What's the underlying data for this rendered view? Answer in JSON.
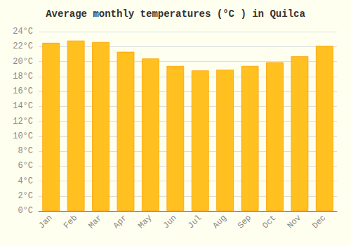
{
  "chart_data": {
    "type": "bar",
    "title": "Average monthly temperatures (°C ) in Quilca",
    "categories": [
      "Jan",
      "Feb",
      "Mar",
      "Apr",
      "May",
      "Jun",
      "Jul",
      "Aug",
      "Sep",
      "Oct",
      "Nov",
      "Dec"
    ],
    "values": [
      22.5,
      22.8,
      22.6,
      21.3,
      20.4,
      19.4,
      18.8,
      18.9,
      19.4,
      19.9,
      20.7,
      22.1
    ],
    "color": "#FFC020",
    "ylim": [
      0,
      24
    ],
    "yticks": [
      {
        "value": 0,
        "label": "0°C"
      },
      {
        "value": 2,
        "label": "2°C"
      },
      {
        "value": 4,
        "label": "4°C"
      },
      {
        "value": 6,
        "label": "6°C"
      },
      {
        "value": 8,
        "label": "8°C"
      },
      {
        "value": 10,
        "label": "10°C"
      },
      {
        "value": 12,
        "label": "12°C"
      },
      {
        "value": 14,
        "label": "14°C"
      },
      {
        "value": 16,
        "label": "16°C"
      },
      {
        "value": 18,
        "label": "18°C"
      },
      {
        "value": 20,
        "label": "20°C"
      },
      {
        "value": 22,
        "label": "22°C"
      },
      {
        "value": 24,
        "label": "24°C"
      }
    ],
    "grid": true
  }
}
